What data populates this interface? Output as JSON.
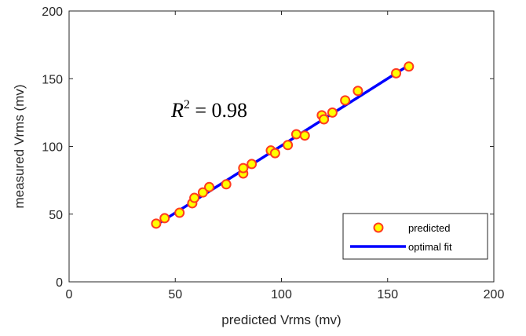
{
  "chart_data": {
    "type": "scatter",
    "xlabel": "predicted Vrms (mv)",
    "ylabel": "measured Vrms (mv)",
    "xlim": [
      0,
      200
    ],
    "ylim": [
      0,
      200
    ],
    "xticks": [
      0,
      50,
      100,
      150,
      200
    ],
    "yticks": [
      0,
      50,
      100,
      150,
      200
    ],
    "grid": false,
    "legend_position": "bottom-right",
    "annotation": {
      "base": "R",
      "superscript": "2",
      "rest": " = 0.98"
    },
    "series": [
      {
        "name": "predicted",
        "kind": "scatter",
        "marker_fill": "#ffff00",
        "marker_edge": "#ff3b1f",
        "points": [
          [
            41,
            43
          ],
          [
            45,
            47
          ],
          [
            52,
            51
          ],
          [
            58,
            58
          ],
          [
            59,
            62
          ],
          [
            63,
            66
          ],
          [
            66,
            70
          ],
          [
            74,
            72
          ],
          [
            82,
            80
          ],
          [
            82,
            84
          ],
          [
            86,
            87
          ],
          [
            95,
            97
          ],
          [
            97,
            95
          ],
          [
            103,
            101
          ],
          [
            107,
            109
          ],
          [
            111,
            108
          ],
          [
            119,
            123
          ],
          [
            120,
            120
          ],
          [
            124,
            125
          ],
          [
            130,
            134
          ],
          [
            136,
            141
          ],
          [
            154,
            154
          ],
          [
            160,
            159
          ]
        ]
      },
      {
        "name": "optimal fit",
        "kind": "line",
        "color": "#0000ff",
        "points": [
          [
            41,
            42
          ],
          [
            158,
            158
          ]
        ]
      }
    ]
  }
}
